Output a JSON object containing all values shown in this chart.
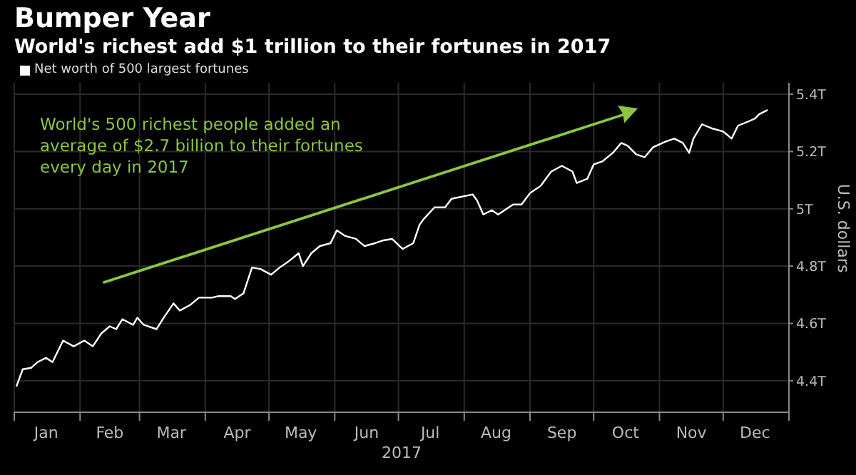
{
  "chart_data": {
    "type": "line",
    "title": "Bumper Year",
    "subtitle": "World's richest add $1 trillion to their fortunes in 2017",
    "xlabel": "2017",
    "ylabel": "U.S. dollars",
    "annotations": [
      "World's 500 richest people added an average of $2.7 billion to their fortunes every day in 2017"
    ],
    "x": [
      "2017-01-02",
      "2017-01-05",
      "2017-01-09",
      "2017-01-12",
      "2017-01-16",
      "2017-01-19",
      "2017-01-24",
      "2017-01-29",
      "2017-02-03",
      "2017-02-07",
      "2017-02-11",
      "2017-02-15",
      "2017-02-18",
      "2017-02-21",
      "2017-02-26",
      "2017-02-28",
      "2017-03-03",
      "2017-03-09",
      "2017-03-12",
      "2017-03-17",
      "2017-03-20",
      "2017-03-25",
      "2017-03-29",
      "2017-04-04",
      "2017-04-07",
      "2017-04-13",
      "2017-04-15",
      "2017-04-19",
      "2017-04-23",
      "2017-04-27",
      "2017-05-02",
      "2017-05-06",
      "2017-05-10",
      "2017-05-15",
      "2017-05-17",
      "2017-05-21",
      "2017-05-25",
      "2017-05-30",
      "2017-06-02",
      "2017-06-06",
      "2017-06-11",
      "2017-06-15",
      "2017-06-20",
      "2017-06-24",
      "2017-06-28",
      "2017-07-03",
      "2017-07-08",
      "2017-07-11",
      "2017-07-13",
      "2017-07-18",
      "2017-07-23",
      "2017-07-26",
      "2017-08-05",
      "2017-08-07",
      "2017-08-10",
      "2017-08-14",
      "2017-08-17",
      "2017-08-24",
      "2017-08-28",
      "2017-09-01",
      "2017-09-06",
      "2017-09-11",
      "2017-09-16",
      "2017-09-21",
      "2017-09-23",
      "2017-09-28",
      "2017-10-01",
      "2017-10-05",
      "2017-10-10",
      "2017-10-14",
      "2017-10-17",
      "2017-10-21",
      "2017-10-25",
      "2017-10-29",
      "2017-11-04",
      "2017-11-08",
      "2017-11-12",
      "2017-11-15",
      "2017-11-17",
      "2017-11-21",
      "2017-11-26",
      "2017-12-01",
      "2017-12-05",
      "2017-12-08",
      "2017-12-13",
      "2017-12-16",
      "2017-12-18",
      "2017-12-22"
    ],
    "series": [
      {
        "name": "Net worth of 500 largest fortunes",
        "color": "#ffffff",
        "values": [
          4.38,
          4.44,
          4.445,
          4.465,
          4.48,
          4.465,
          4.54,
          4.52,
          4.54,
          4.52,
          4.565,
          4.59,
          4.58,
          4.615,
          4.595,
          4.62,
          4.595,
          4.58,
          4.615,
          4.67,
          4.645,
          4.665,
          4.69,
          4.69,
          4.695,
          4.695,
          4.685,
          4.705,
          4.795,
          4.79,
          4.77,
          4.795,
          4.815,
          4.845,
          4.8,
          4.845,
          4.87,
          4.88,
          4.925,
          4.905,
          4.895,
          4.87,
          4.88,
          4.89,
          4.895,
          4.86,
          4.88,
          4.945,
          4.965,
          5.005,
          5.005,
          5.035,
          5.05,
          5.03,
          4.98,
          4.995,
          4.98,
          5.015,
          5.015,
          5.055,
          5.08,
          5.13,
          5.15,
          5.13,
          5.09,
          5.105,
          5.155,
          5.165,
          5.195,
          5.23,
          5.22,
          5.19,
          5.18,
          5.215,
          5.235,
          5.245,
          5.23,
          5.195,
          5.245,
          5.295,
          5.28,
          5.27,
          5.245,
          5.29,
          5.305,
          5.315,
          5.33,
          5.345
        ]
      }
    ],
    "xlim": [
      "2017-01-01",
      "2018-01-01"
    ],
    "xticks": [
      {
        "value": "2017-01-01",
        "label": null
      },
      {
        "value": "2017-01-16",
        "label": "Jan"
      },
      {
        "value": "2017-02-01",
        "label": null
      },
      {
        "value": "2017-02-15",
        "label": "Feb"
      },
      {
        "value": "2017-03-01",
        "label": null
      },
      {
        "value": "2017-03-16",
        "label": "Mar"
      },
      {
        "value": "2017-04-01",
        "label": null
      },
      {
        "value": "2017-04-16",
        "label": "Apr"
      },
      {
        "value": "2017-05-01",
        "label": null
      },
      {
        "value": "2017-05-16",
        "label": "May"
      },
      {
        "value": "2017-06-01",
        "label": null
      },
      {
        "value": "2017-06-16",
        "label": "Jun"
      },
      {
        "value": "2017-07-01",
        "label": null
      },
      {
        "value": "2017-07-16",
        "label": "Jul"
      },
      {
        "value": "2017-08-01",
        "label": null
      },
      {
        "value": "2017-08-16",
        "label": "Aug"
      },
      {
        "value": "2017-09-01",
        "label": null
      },
      {
        "value": "2017-09-16",
        "label": "Sep"
      },
      {
        "value": "2017-10-01",
        "label": null
      },
      {
        "value": "2017-10-16",
        "label": "Oct"
      },
      {
        "value": "2017-11-01",
        "label": null
      },
      {
        "value": "2017-11-16",
        "label": "Nov"
      },
      {
        "value": "2017-12-01",
        "label": null
      },
      {
        "value": "2017-12-16",
        "label": "Dec"
      },
      {
        "value": "2018-01-01",
        "label": null
      }
    ],
    "ylim": [
      4.29,
      5.44
    ],
    "yticks": [
      {
        "value": 4.4,
        "label": "4.4T"
      },
      {
        "value": 4.6,
        "label": "4.6T"
      },
      {
        "value": 4.8,
        "label": "4.8T"
      },
      {
        "value": 5,
        "label": "5T"
      },
      {
        "value": 5.2,
        "label": "5.2T"
      },
      {
        "value": 5.4,
        "label": "5.4T"
      }
    ],
    "grid": true,
    "legend": "top left",
    "marker": "none",
    "line_style": "solid"
  }
}
